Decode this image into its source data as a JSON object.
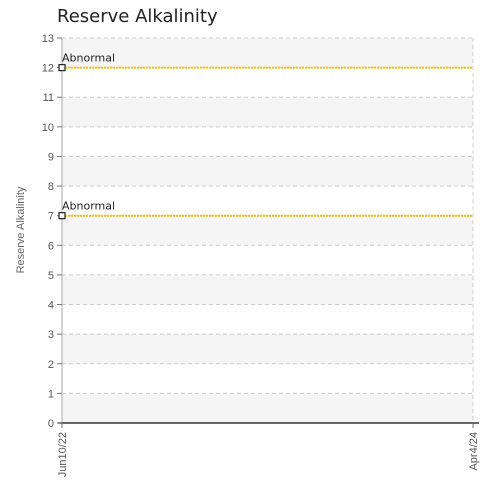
{
  "chart_data": {
    "type": "line",
    "title": "Reserve Alkalinity",
    "xlabel": "",
    "ylabel": "Reserve Alkalinity",
    "x_ticks": [
      "Jun10/22",
      "Apr4/24"
    ],
    "ylim": [
      0,
      13
    ],
    "y_ticks": [
      0,
      1,
      2,
      3,
      4,
      5,
      6,
      7,
      8,
      9,
      10,
      11,
      12,
      13
    ],
    "grid": true,
    "series": [
      {
        "x": [
          "Jun10/22",
          "Apr4/24"
        ],
        "values": [
          12,
          12
        ],
        "point_label": "Abnormal",
        "color": "#e8c31a"
      },
      {
        "x": [
          "Jun10/22",
          "Apr4/24"
        ],
        "values": [
          7,
          7
        ],
        "point_label": "Abnormal",
        "color": "#e8c31a"
      }
    ]
  },
  "colors": {
    "band": "#f5f5f5",
    "grid": "#cccccc",
    "axis": "#333333",
    "line": "#e8c31a"
  }
}
